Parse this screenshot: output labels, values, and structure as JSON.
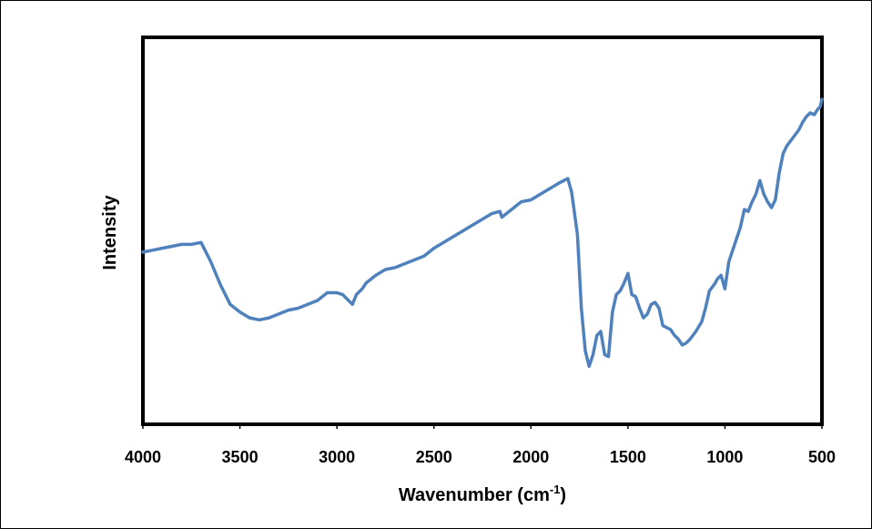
{
  "chart_data": {
    "type": "line",
    "title": "",
    "xlabel": "Wavenumber (cm",
    "xlabel_superscript": "-1",
    "xlabel_suffix": ")",
    "ylabel": "Intensity",
    "xlim": [
      4000,
      500
    ],
    "x_reversed": true,
    "ylim": [
      0,
      100
    ],
    "y_ticks_shown": false,
    "grid": false,
    "legend": "none",
    "x_ticks": [
      4000,
      3500,
      3000,
      2500,
      2000,
      1500,
      1000,
      500
    ],
    "x_tick_labels": [
      "4000",
      "3500",
      "3000",
      "2500",
      "2000",
      "1500",
      "1000",
      "500"
    ],
    "series": [
      {
        "color": "#4F81BD",
        "x": [
          4000,
          3950,
          3900,
          3850,
          3800,
          3750,
          3700,
          3680,
          3650,
          3600,
          3550,
          3500,
          3450,
          3400,
          3350,
          3300,
          3250,
          3200,
          3150,
          3100,
          3050,
          3000,
          2970,
          2940,
          2920,
          2900,
          2870,
          2850,
          2800,
          2750,
          2700,
          2650,
          2600,
          2550,
          2500,
          2450,
          2400,
          2350,
          2300,
          2250,
          2200,
          2160,
          2150,
          2100,
          2050,
          2000,
          1950,
          1900,
          1850,
          1810,
          1790,
          1760,
          1740,
          1720,
          1700,
          1680,
          1660,
          1640,
          1620,
          1600,
          1580,
          1560,
          1540,
          1520,
          1500,
          1480,
          1460,
          1440,
          1420,
          1400,
          1380,
          1360,
          1340,
          1320,
          1300,
          1280,
          1260,
          1240,
          1220,
          1200,
          1180,
          1150,
          1120,
          1100,
          1080,
          1050,
          1040,
          1020,
          1000,
          980,
          950,
          920,
          900,
          880,
          860,
          840,
          820,
          800,
          780,
          760,
          740,
          720,
          700,
          680,
          650,
          620,
          600,
          580,
          560,
          540,
          520,
          510,
          500
        ],
        "y": [
          44.5,
          45.0,
          45.5,
          46.0,
          46.5,
          46.5,
          47.0,
          45.0,
          42.0,
          36.0,
          31.0,
          29.0,
          27.5,
          27.0,
          27.5,
          28.5,
          29.5,
          30.0,
          31.0,
          32.0,
          34.0,
          34.0,
          33.5,
          32.0,
          31.0,
          33.5,
          35.0,
          36.5,
          38.5,
          40.0,
          40.5,
          41.5,
          42.5,
          43.5,
          45.5,
          47.0,
          48.5,
          50.0,
          51.5,
          53.0,
          54.5,
          55.0,
          53.5,
          55.5,
          57.5,
          58.0,
          59.5,
          61.0,
          62.5,
          63.5,
          60.0,
          49.0,
          30.0,
          19.0,
          15.0,
          18.0,
          23.0,
          24.0,
          18.0,
          17.5,
          29.0,
          33.5,
          34.5,
          36.5,
          39.0,
          33.5,
          33.0,
          30.0,
          27.5,
          28.5,
          31.0,
          31.5,
          30.0,
          25.5,
          25.0,
          24.5,
          23.0,
          22.0,
          20.5,
          21.0,
          22.0,
          24.0,
          26.5,
          30.0,
          34.5,
          36.5,
          37.5,
          38.5,
          35.0,
          42.0,
          46.5,
          51.0,
          55.5,
          55.0,
          57.5,
          59.5,
          63.0,
          59.5,
          57.5,
          56.0,
          58.0,
          65.0,
          70.0,
          72.0,
          74.0,
          76.0,
          78.0,
          79.5,
          80.5,
          80.0,
          81.5,
          82.0,
          84.0
        ]
      }
    ]
  }
}
